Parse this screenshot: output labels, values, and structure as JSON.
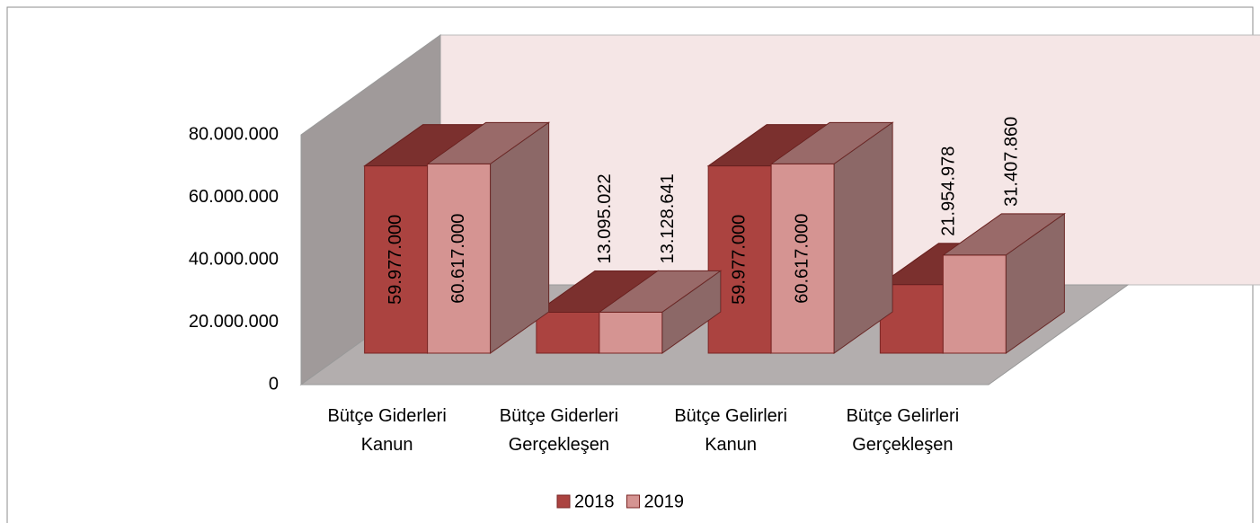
{
  "chart_data": {
    "type": "bar3d",
    "categories": [
      "Bütçe Giderleri Kanun",
      "Bütçe Giderleri Gerçekleşen",
      "Bütçe Gelirleri Kanun",
      "Bütçe Gelirleri Gerçekleşen"
    ],
    "series": [
      {
        "name": "2018",
        "color": "#ab4340",
        "values": [
          59977000,
          13095022,
          59977000,
          21954978
        ],
        "value_labels": [
          "59.977.000",
          "13.095.022",
          "59.977.000",
          "21.954.978"
        ]
      },
      {
        "name": "2019",
        "color": "#d59492",
        "values": [
          60617000,
          13128641,
          60617000,
          31407860
        ],
        "value_labels": [
          "60.617.000",
          "13.128.641",
          "60.617.000",
          "31.407.860"
        ]
      }
    ],
    "ylim": [
      0,
      80000000
    ],
    "yticks": [
      0,
      {
        "value": 20000000,
        "label": "20.000.000"
      },
      {
        "value": 40000000,
        "label": "40.000.000"
      },
      {
        "value": 60000000,
        "label": "60.000.000"
      },
      {
        "value": 80000000,
        "label": "80.000.000"
      }
    ],
    "back_wall_color": "#f5e6e6",
    "wall_color": "#a09a9a",
    "floor_color": "#b3aeae"
  }
}
